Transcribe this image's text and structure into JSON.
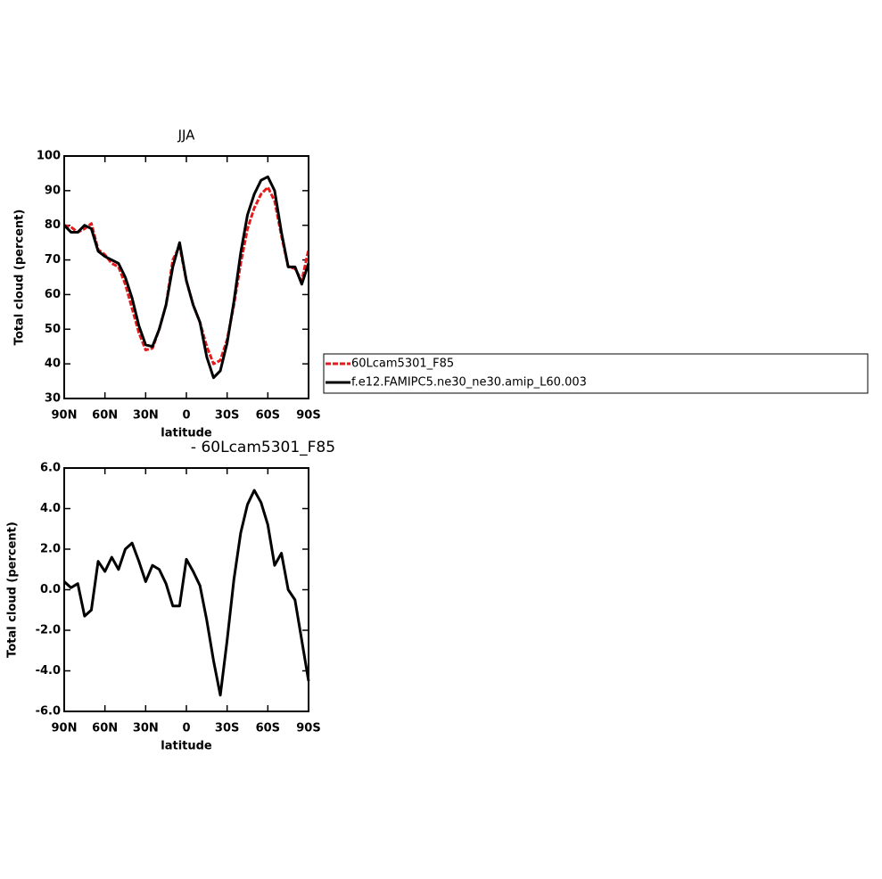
{
  "chart_data": [
    {
      "type": "line",
      "title": "JJA",
      "xlabel": "latitude",
      "ylabel": "Total cloud (percent)",
      "x": [
        90,
        85,
        80,
        75,
        70,
        65,
        60,
        55,
        50,
        45,
        40,
        35,
        30,
        25,
        20,
        15,
        10,
        5,
        0,
        -5,
        -10,
        -15,
        -20,
        -25,
        -30,
        -35,
        -40,
        -45,
        -50,
        -55,
        -60,
        -65,
        -70,
        -75,
        -80,
        -85,
        -90
      ],
      "series": [
        {
          "name": "60Lcam5301_F85",
          "color": "#e41a1c",
          "dash": true,
          "values": [
            80,
            79.5,
            78,
            79,
            80.5,
            73,
            71.5,
            69,
            68,
            63,
            56,
            49,
            44,
            44.5,
            50,
            57,
            70,
            74,
            64,
            57,
            52,
            45,
            40,
            41,
            47,
            57,
            69,
            79,
            85,
            89,
            91,
            87,
            77,
            68,
            67.5,
            64,
            73
          ]
        },
        {
          "name": "f.e12.FAMIPC5.ne30_ne30.amip_L60.003",
          "color": "#000000",
          "dash": false,
          "values": [
            80,
            78,
            78,
            80,
            79,
            72.5,
            71,
            70,
            69,
            65,
            59,
            51,
            45.5,
            45,
            50,
            57,
            68,
            75,
            64,
            57,
            52,
            42,
            36,
            38,
            46,
            58,
            72,
            83,
            89,
            93,
            94,
            90,
            78,
            68,
            68,
            63,
            69
          ]
        }
      ],
      "xlim": [
        90,
        -90
      ],
      "xticks": [
        {
          "value": 90,
          "label": "90N"
        },
        {
          "value": 60,
          "label": "60N"
        },
        {
          "value": 30,
          "label": "30N"
        },
        0,
        {
          "value": -30,
          "label": "30S"
        },
        {
          "value": -60,
          "label": "60S"
        },
        {
          "value": -90,
          "label": "90S"
        }
      ],
      "ylim": [
        30,
        100
      ],
      "yticks": [
        30,
        40,
        50,
        60,
        70,
        80,
        90,
        100
      ]
    },
    {
      "type": "line",
      "title": "- 60Lcam5301_F85",
      "xlabel": "latitude",
      "ylabel": "Total cloud (percent)",
      "x": [
        90,
        85,
        80,
        75,
        70,
        65,
        60,
        55,
        50,
        45,
        40,
        35,
        30,
        25,
        20,
        15,
        10,
        5,
        0,
        -5,
        -10,
        -15,
        -20,
        -25,
        -30,
        -35,
        -40,
        -45,
        -50,
        -55,
        -60,
        -65,
        -70,
        -75,
        -80,
        -85,
        -90
      ],
      "series": [
        {
          "color": "#000000",
          "dash": false,
          "values": [
            0.4,
            0.1,
            0.3,
            -1.3,
            -1.0,
            1.4,
            0.9,
            1.6,
            1.0,
            2.0,
            2.3,
            1.4,
            0.4,
            1.2,
            1.0,
            0.3,
            -0.8,
            -0.8,
            1.5,
            0.9,
            0.2,
            -1.5,
            -3.5,
            -5.2,
            -2.5,
            0.5,
            2.8,
            4.2,
            4.9,
            4.3,
            3.2,
            1.2,
            1.8,
            0,
            -0.5,
            -2.5,
            -4.5
          ]
        }
      ],
      "xlim": [
        90,
        -90
      ],
      "xticks": [
        {
          "value": 90,
          "label": "90N"
        },
        {
          "value": 60,
          "label": "60N"
        },
        {
          "value": 30,
          "label": "30N"
        },
        0,
        {
          "value": -30,
          "label": "30S"
        },
        {
          "value": -60,
          "label": "60S"
        },
        {
          "value": -90,
          "label": "90S"
        }
      ],
      "ylim": [
        -6,
        6
      ],
      "yticks": [
        {
          "value": -6,
          "label": "-6.0"
        },
        {
          "value": -4,
          "label": "-4.0"
        },
        {
          "value": -2,
          "label": "-2.0"
        },
        {
          "value": 0,
          "label": "0.0"
        },
        {
          "value": 2,
          "label": "2.0"
        },
        {
          "value": 4,
          "label": "4.0"
        },
        {
          "value": 6,
          "label": "6.0"
        }
      ]
    }
  ]
}
